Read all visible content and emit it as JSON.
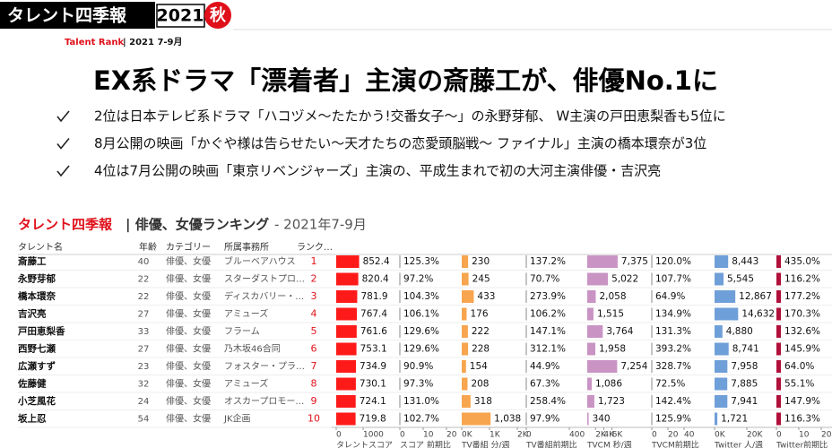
{
  "header": {
    "brand": "タレント四季報",
    "year": "2021",
    "season": "秋",
    "tag": "Talent Rank",
    "period": "| 2021 7-9月"
  },
  "headline": "EX系ドラマ「漂着者」主演の斎藤工が、俳優No.1に",
  "bullets": [
    "2位は日本テレビ系ドラマ「ハコヅメ～たたかう!交番女子～」の永野芽郁、 W主演の戸田恵梨香も5位に",
    "8月公開の映画「かぐや様は告らせたい～天才たちの恋愛頭脳戦～ ファイナル」主演の橋本環奈が3位",
    "4位は7月公開の映画「東京リベンジャーズ」主演の、平成生まれで初の大河主演俳優・吉沢亮"
  ],
  "table": {
    "brand": "タレント四季報",
    "title": "| 俳優、女優ランキング",
    "period": " - 2021年7-9月",
    "columns": [
      "タレント名",
      "年齢",
      "カテゴリー",
      "所属事務所",
      "ランク…"
    ],
    "rows": [
      {
        "name": "斎藤工",
        "age": 40,
        "category": "俳優、女優",
        "agency": "ブルーベアハウス",
        "rank": 1,
        "score": 852.4,
        "score_change": "125.3%",
        "tv": 230,
        "tv_change": "137.2%",
        "tvcm": {
          "value": 7375,
          "label": "7,375"
        },
        "tvcm_change": "120.0%",
        "twitter": {
          "value": 8443,
          "label": "8,443"
        },
        "twitter_change": "435.0%"
      },
      {
        "name": "永野芽郁",
        "age": 22,
        "category": "俳優、女優",
        "agency": "スターダストプロ…",
        "rank": 2,
        "score": 820.4,
        "score_change": "97.2%",
        "tv": 245,
        "tv_change": "70.7%",
        "tvcm": {
          "value": 5022,
          "label": "5,022"
        },
        "tvcm_change": "107.7%",
        "twitter": {
          "value": 5545,
          "label": "5,545"
        },
        "twitter_change": "116.2%"
      },
      {
        "name": "橋本環奈",
        "age": 22,
        "category": "俳優、女優",
        "agency": "ディスカバリー・…",
        "rank": 3,
        "score": 781.9,
        "score_change": "104.3%",
        "tv": 433,
        "tv_change": "273.9%",
        "tvcm": {
          "value": 2058,
          "label": "2,058"
        },
        "tvcm_change": "64.9%",
        "twitter": {
          "value": 12867,
          "label": "12,867"
        },
        "twitter_change": "177.2%"
      },
      {
        "name": "吉沢亮",
        "age": 27,
        "category": "俳優、女優",
        "agency": "アミューズ",
        "rank": 4,
        "score": 767.4,
        "score_change": "106.1%",
        "tv": 176,
        "tv_change": "106.2%",
        "tvcm": {
          "value": 1515,
          "label": "1,515"
        },
        "tvcm_change": "134.9%",
        "twitter": {
          "value": 14632,
          "label": "14,632"
        },
        "twitter_change": "170.3%"
      },
      {
        "name": "戸田恵梨香",
        "age": 33,
        "category": "俳優、女優",
        "agency": "フラーム",
        "rank": 5,
        "score": 761.6,
        "score_change": "129.6%",
        "tv": 222,
        "tv_change": "147.1%",
        "tvcm": {
          "value": 3764,
          "label": "3,764"
        },
        "tvcm_change": "131.3%",
        "twitter": {
          "value": 4880,
          "label": "4,880"
        },
        "twitter_change": "132.6%"
      },
      {
        "name": "西野七瀬",
        "age": 27,
        "category": "俳優、女優",
        "agency": "乃木坂46合同",
        "rank": 6,
        "score": 753.1,
        "score_change": "129.6%",
        "tv": 228,
        "tv_change": "312.1%",
        "tvcm": {
          "value": 1958,
          "label": "1,958"
        },
        "tvcm_change": "393.2%",
        "twitter": {
          "value": 8741,
          "label": "8,741"
        },
        "twitter_change": "145.9%"
      },
      {
        "name": "広瀬すず",
        "age": 23,
        "category": "俳優、女優",
        "agency": "フォスター・プラ…",
        "rank": 7,
        "score": 734.9,
        "score_change": "90.9%",
        "tv": 154,
        "tv_change": "44.9%",
        "tvcm": {
          "value": 7254,
          "label": "7,254"
        },
        "tvcm_change": "328.7%",
        "twitter": {
          "value": 7958,
          "label": "7,958"
        },
        "twitter_change": "64.0%"
      },
      {
        "name": "佐藤健",
        "age": 32,
        "category": "俳優、女優",
        "agency": "アミューズ",
        "rank": 8,
        "score": 730.1,
        "score_change": "97.3%",
        "tv": 208,
        "tv_change": "67.3%",
        "tvcm": {
          "value": 1086,
          "label": "1,086"
        },
        "tvcm_change": "72.5%",
        "twitter": {
          "value": 7885,
          "label": "7,885"
        },
        "twitter_change": "55.1%"
      },
      {
        "name": "小芝風花",
        "age": 24,
        "category": "俳優、女優",
        "agency": "オスカープロモー…",
        "rank": 9,
        "score": 724.1,
        "score_change": "131.0%",
        "tv": 318,
        "tv_change": "258.4%",
        "tvcm": {
          "value": 1723,
          "label": "1,723"
        },
        "tvcm_change": "142.4%",
        "twitter": {
          "value": 7941,
          "label": "7,941"
        },
        "twitter_change": "147.9%"
      },
      {
        "name": "坂上忍",
        "age": 54,
        "category": "俳優、女優",
        "agency": "JK企画",
        "rank": 10,
        "score": 719.8,
        "score_change": "102.7%",
        "tv": {
          "value": 1038,
          "label": "1,038"
        },
        "tv_change": "97.9%",
        "tvcm": 340,
        "tvcm_change": "125.9%",
        "twitter": {
          "value": 1721,
          "label": "1,721"
        },
        "twitter_change": "116.3%"
      }
    ],
    "axes": {
      "score": [
        0,
        1000
      ],
      "score_change": [
        0,
        10,
        20
      ],
      "tv": [
        {
          "value": 0,
          "label": "0K"
        },
        {
          "value": 1000,
          "label": "1K"
        },
        {
          "value": 2000,
          "label": "2K"
        }
      ],
      "tv_change": [
        0,
        400
      ],
      "tvcm": [
        {
          "value": 2000,
          "label": "2K"
        },
        {
          "value": 4000,
          "label": "4K"
        },
        {
          "value": 6000,
          "label": "6K"
        }
      ],
      "tvcm_change": [
        0,
        20,
        40
      ],
      "twitter": [
        {
          "value": 0,
          "label": "0K"
        },
        {
          "value": 20000,
          "label": "20K"
        }
      ],
      "twitter_change": [
        0,
        10,
        20
      ]
    },
    "footers": [
      "タレントスコア",
      "スコア 前期比",
      "TV番組 分/週",
      "TV番組前期比",
      "TVCM 秒/週",
      "TVCM前期比",
      "Twitter 人/週",
      "Twitter前期比"
    ]
  }
}
